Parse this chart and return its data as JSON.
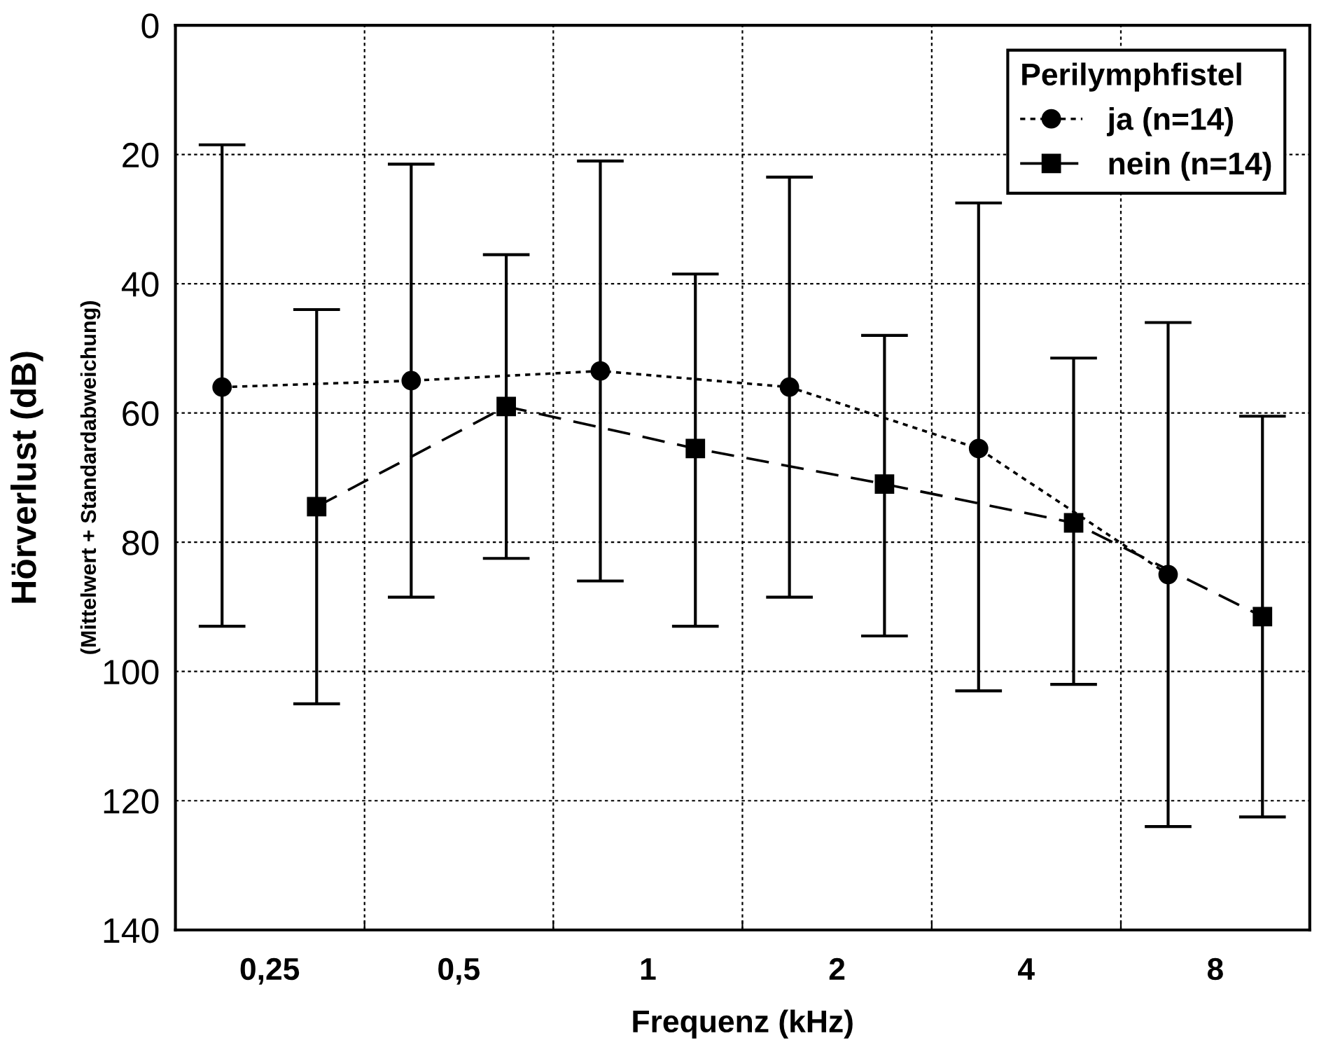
{
  "chart_data": {
    "type": "line",
    "xlabel": "Frequenz (kHz)",
    "ylabel": "Hörverlust (dB)\n(Mittelwert + Standardabweichung)",
    "legend_title": "Perilymphfistel",
    "log": "x",
    "xlim": [
      0.177,
      11.31
    ],
    "xticks": [
      {
        "value": 0.25,
        "label": "0,25"
      },
      {
        "value": 0.354,
        "label": null
      },
      {
        "value": 0.5,
        "label": "0,5"
      },
      {
        "value": 0.707,
        "label": null
      },
      {
        "value": 1,
        "label": "1"
      },
      {
        "value": 1.414,
        "label": null
      },
      {
        "value": 2,
        "label": "2"
      },
      {
        "value": 2.83,
        "label": null
      },
      {
        "value": 4,
        "label": "4"
      },
      {
        "value": 5.66,
        "label": null
      },
      {
        "value": 8,
        "label": "8"
      }
    ],
    "ylim": [
      140,
      0
    ],
    "yticks": [
      0,
      20,
      40,
      60,
      80,
      100,
      120,
      140
    ],
    "grid": true,
    "legend": "top right",
    "series": [
      {
        "name": "ja (n=14)",
        "color": "#000000",
        "marker": "circle",
        "line_style": "dotted",
        "x": [
          0.21,
          0.42,
          0.84,
          1.68,
          3.36,
          6.73
        ],
        "values": [
          56,
          55,
          53.5,
          56,
          65.5,
          85
        ],
        "errors": [
          [
            18.5,
            93
          ],
          [
            21.5,
            88.5
          ],
          [
            21,
            86
          ],
          [
            23.5,
            88.5
          ],
          [
            27.5,
            103
          ],
          [
            46,
            124
          ]
        ]
      },
      {
        "name": "nein (n=14)",
        "color": "#000000",
        "marker": "square",
        "line_style": "dashed",
        "x": [
          0.297,
          0.595,
          1.19,
          2.38,
          4.76,
          9.51
        ],
        "values": [
          74.5,
          59,
          65.5,
          71,
          77,
          91.5
        ],
        "errors": [
          [
            44,
            105
          ],
          [
            35.5,
            82.5
          ],
          [
            38.5,
            93
          ],
          [
            48,
            94.5
          ],
          [
            51.5,
            102
          ],
          [
            60.5,
            122.5
          ]
        ]
      }
    ]
  }
}
